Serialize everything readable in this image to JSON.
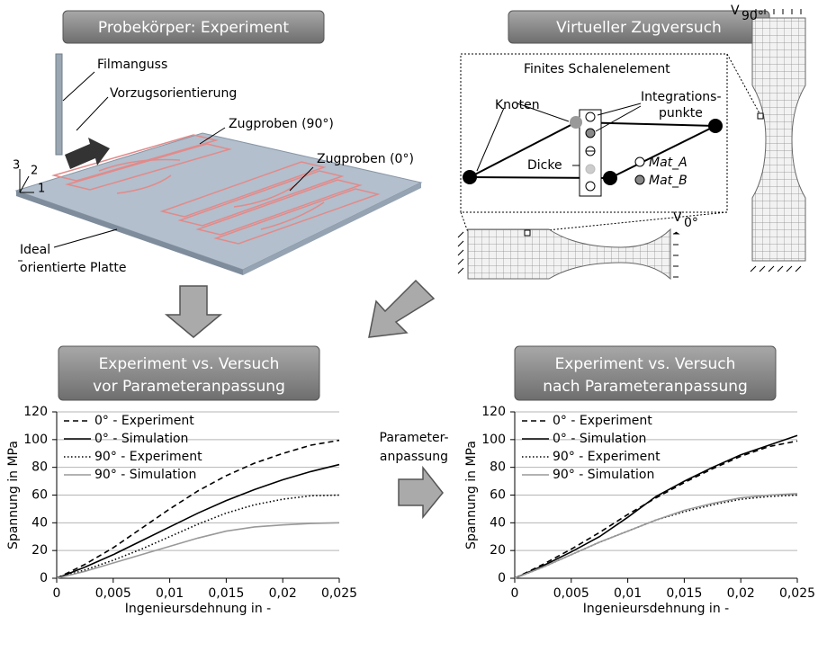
{
  "top_left": {
    "title": "Probekörper: Experiment",
    "sprue": "Filmanguss",
    "orientation": "Vorzugsorientierung",
    "specimens_90": "Zugproben (90°)",
    "specimens_0": "Zugproben (0°)",
    "plate_line1": "Ideal",
    "plate_line2": "orientierte Platte",
    "axis_3": "3",
    "axis_2": "2",
    "axis_1": "1"
  },
  "top_right": {
    "title": "Virtueller Zugversuch",
    "element": "Finites Schalenelement",
    "nodes": "Knoten",
    "integration_line1": "Integrations-",
    "integration_line2": "punkte",
    "thickness": "Dicke",
    "mat_a": "Mat_A",
    "mat_b": "Mat_B",
    "v90_symbol": "V",
    "v90_sub": "90°",
    "v0_symbol": "V",
    "v0_sub": "0°"
  },
  "middle": {
    "line1": "Parameter-",
    "line2": "anpassung"
  },
  "chart_data": [
    {
      "type": "line",
      "title": "Experiment vs. Versuch",
      "subtitle": "vor Parameteranpassung",
      "x_label": "Ingenieursdehnung in -",
      "y_label": "Spannung in MPa",
      "x": [
        0,
        0.0025,
        0.005,
        0.0075,
        0.01,
        0.0125,
        0.015,
        0.0175,
        0.02,
        0.0225,
        0.025
      ],
      "series": [
        {
          "name": "0° - Experiment",
          "color": "#000000",
          "dash": "dashed",
          "values": [
            0,
            10,
            22,
            36,
            50,
            63,
            74,
            83,
            90,
            96,
            99.5
          ]
        },
        {
          "name": "0° - Simulation",
          "color": "#000000",
          "dash": "solid",
          "values": [
            0,
            8,
            17,
            27,
            37,
            47,
            56,
            64,
            71,
            77,
            82
          ]
        },
        {
          "name": "90° - Experiment",
          "color": "#000000",
          "dash": "dotted",
          "values": [
            0,
            6,
            13,
            21,
            30,
            39,
            47,
            53,
            57,
            59.5,
            60
          ]
        },
        {
          "name": "90° - Simulation",
          "color": "#999999",
          "dash": "solid",
          "values": [
            0,
            5,
            11,
            17,
            23,
            29,
            34,
            37,
            38.5,
            39.5,
            40
          ]
        }
      ],
      "xlim": [
        0,
        0.025
      ],
      "ylim": [
        0,
        120
      ],
      "xticks": [
        0,
        {
          "value": 0.005,
          "label": "0,005"
        },
        {
          "value": 0.01,
          "label": "0,01"
        },
        {
          "value": 0.015,
          "label": "0,015"
        },
        {
          "value": 0.02,
          "label": "0,02"
        },
        {
          "value": 0.025,
          "label": "0,025"
        }
      ],
      "yticks": [
        0,
        20,
        40,
        60,
        80,
        100,
        120
      ],
      "grid": true,
      "legend": "upper left"
    },
    {
      "type": "line",
      "title": "Experiment vs. Versuch",
      "subtitle": "nach Parameteranpassung",
      "x_label": "Ingenieursdehnung in -",
      "y_label": "Spannung in MPa",
      "x": [
        0,
        0.0025,
        0.005,
        0.0075,
        0.01,
        0.0125,
        0.015,
        0.0175,
        0.02,
        0.0225,
        0.025
      ],
      "series": [
        {
          "name": "0° - Experiment",
          "color": "#000000",
          "dash": "dashed",
          "values": [
            0,
            10,
            21,
            33,
            46,
            58,
            69,
            79,
            88,
            95,
            99
          ]
        },
        {
          "name": "0° - Simulation",
          "color": "#000000",
          "dash": "solid",
          "values": [
            0,
            9,
            19,
            30,
            44,
            59,
            70,
            80,
            89,
            96,
            103
          ]
        },
        {
          "name": "90° - Experiment",
          "color": "#000000",
          "dash": "dotted",
          "values": [
            0,
            8,
            17,
            26,
            34,
            42,
            48,
            53,
            57,
            59,
            60
          ]
        },
        {
          "name": "90° - Simulation",
          "color": "#999999",
          "dash": "solid",
          "values": [
            0,
            8,
            17,
            26,
            34,
            42,
            49,
            54,
            58,
            60,
            61
          ]
        }
      ],
      "xlim": [
        0,
        0.025
      ],
      "ylim": [
        0,
        120
      ],
      "xticks": [
        0,
        {
          "value": 0.005,
          "label": "0,005"
        },
        {
          "value": 0.01,
          "label": "0,01"
        },
        {
          "value": 0.015,
          "label": "0,015"
        },
        {
          "value": 0.02,
          "label": "0,02"
        },
        {
          "value": 0.025,
          "label": "0,025"
        }
      ],
      "yticks": [
        0,
        20,
        40,
        60,
        80,
        100,
        120
      ],
      "grid": true,
      "legend": "upper left"
    }
  ]
}
